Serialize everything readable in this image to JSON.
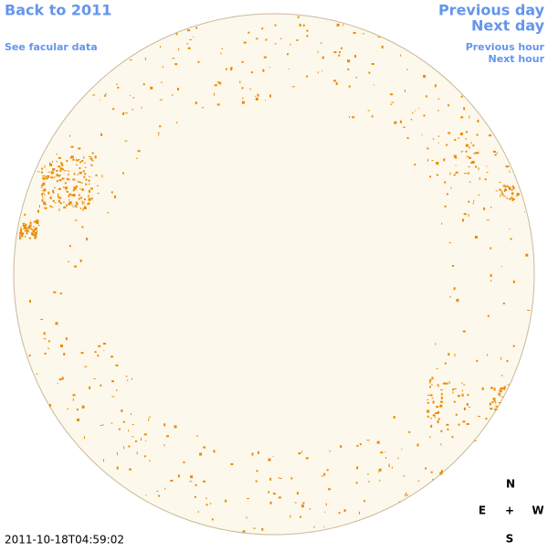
{
  "nav": {
    "back": "Back to 2011",
    "facular": "See facular data",
    "previous_day": "Previous day",
    "next_day": "Next day",
    "previous_hour": "Previous hour",
    "next_hour": "Next hour"
  },
  "timestamp": "2011-10-18T04:59:02",
  "compass": {
    "north": "N",
    "east": "E",
    "center": "+",
    "west": "W",
    "south": "S"
  }
}
